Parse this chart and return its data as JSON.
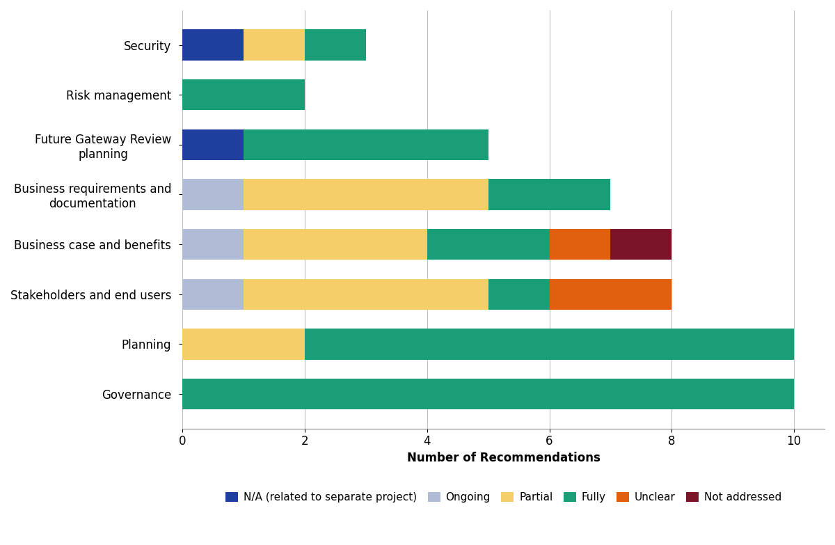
{
  "categories": [
    "Governance",
    "Planning",
    "Stakeholders and end users",
    "Business case and benefits",
    "Business requirements and\ndocumentation",
    "Future Gateway Review\nplanning",
    "Risk management",
    "Security"
  ],
  "segments": {
    "N/A (related to separate project)": {
      "color": "#1F3F9F",
      "values": [
        0,
        0,
        0,
        0,
        0,
        1,
        0,
        1
      ]
    },
    "Ongoing": {
      "color": "#B0BBD5",
      "values": [
        0,
        0,
        1,
        1,
        1,
        0,
        0,
        0
      ]
    },
    "Partial": {
      "color": "#F5CE6A",
      "values": [
        0,
        2,
        4,
        3,
        4,
        0,
        0,
        1
      ]
    },
    "Fully": {
      "color": "#1A9E78",
      "values": [
        10,
        8,
        1,
        2,
        2,
        4,
        2,
        1
      ]
    },
    "Unclear": {
      "color": "#E06010",
      "values": [
        0,
        0,
        2,
        1,
        0,
        0,
        0,
        0
      ]
    },
    "Not addressed": {
      "color": "#7B1428",
      "values": [
        0,
        0,
        0,
        1,
        0,
        0,
        0,
        0
      ]
    }
  },
  "xlabel": "Number of Recommendations",
  "xlim": [
    0,
    10.5
  ],
  "xticks": [
    0,
    2,
    4,
    6,
    8,
    10
  ],
  "figsize": [
    12.0,
    7.83
  ],
  "dpi": 100,
  "bar_height": 0.62,
  "title_fontsize": 14,
  "label_fontsize": 12,
  "tick_fontsize": 12,
  "legend_fontsize": 11
}
